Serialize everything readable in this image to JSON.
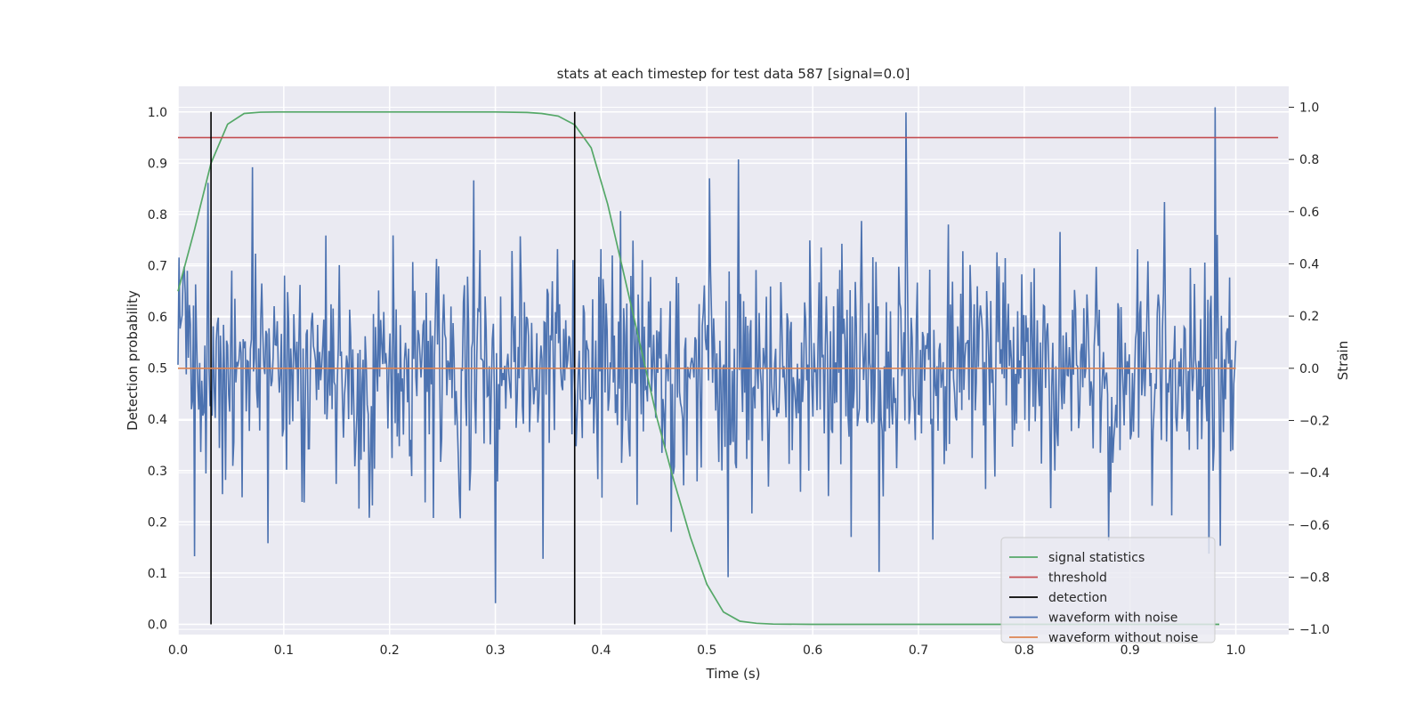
{
  "chart_data": {
    "type": "line",
    "title": "stats at each timestep for test data 587 [signal=0.0]",
    "xlabel": "Time (s)",
    "ylabel": "Detection probability",
    "y2label": "Strain",
    "xlim": [
      0.0,
      1.05
    ],
    "ylim": [
      -0.02,
      1.05
    ],
    "y2lim": [
      -1.02,
      1.08
    ],
    "xticks": [
      "0.0",
      "0.1",
      "0.2",
      "0.3",
      "0.4",
      "0.5",
      "0.6",
      "0.7",
      "0.8",
      "0.9",
      "1.0"
    ],
    "yticks": [
      "0.0",
      "0.1",
      "0.2",
      "0.3",
      "0.4",
      "0.5",
      "0.6",
      "0.7",
      "0.8",
      "0.9",
      "1.0"
    ],
    "y2ticks": [
      "−1.0",
      "−0.8",
      "−0.6",
      "−0.4",
      "−0.2",
      "0.0",
      "0.2",
      "0.4",
      "0.6",
      "0.8",
      "1.0"
    ],
    "grid": true,
    "legend_position": "lower-right",
    "series": [
      {
        "name": "signal statistics",
        "axis": "left",
        "color": "#55a868",
        "x": [
          0.0,
          0.0156,
          0.0312,
          0.0469,
          0.0625,
          0.0781,
          0.0938,
          0.1094,
          0.125,
          0.2,
          0.3,
          0.33,
          0.3438,
          0.3594,
          0.375,
          0.3906,
          0.4062,
          0.4219,
          0.4375,
          0.4531,
          0.4688,
          0.4844,
          0.5,
          0.5156,
          0.5312,
          0.5469,
          0.5625,
          0.6,
          0.7,
          0.8,
          0.9,
          0.9844
        ],
        "y": [
          0.65,
          0.77,
          0.9,
          0.976,
          0.997,
          0.9995,
          1.0,
          1.0,
          1.0,
          1.0,
          1.0,
          0.999,
          0.997,
          0.992,
          0.975,
          0.93,
          0.82,
          0.68,
          0.54,
          0.4,
          0.28,
          0.17,
          0.078,
          0.024,
          0.006,
          0.002,
          0.0005,
          0.0,
          0.0,
          0.0,
          0.0,
          0.0
        ]
      },
      {
        "name": "threshold",
        "axis": "left",
        "color": "#c44e52",
        "x": [
          0.0,
          1.04
        ],
        "y": [
          0.95,
          0.95
        ]
      },
      {
        "name": "detection",
        "axis": "left",
        "color": "#000000",
        "lines_at_x": [
          0.0312,
          0.375
        ],
        "y_range": [
          0.0,
          1.0
        ]
      },
      {
        "name": "waveform with noise",
        "axis": "right",
        "color": "#4c72b0",
        "x_start": 0.0,
        "x_end": 1.0,
        "points": 1024,
        "rms": 0.22,
        "y_min": -0.92,
        "y_max": 1.0,
        "notable_points": [
          {
            "x": 0.0156,
            "y": -0.72
          },
          {
            "x": 0.0285,
            "y": 0.71
          },
          {
            "x": 0.07,
            "y": 0.77
          },
          {
            "x": 0.085,
            "y": -0.67
          },
          {
            "x": 0.28,
            "y": 0.72
          },
          {
            "x": 0.3,
            "y": -0.9
          },
          {
            "x": 0.345,
            "y": -0.73
          },
          {
            "x": 0.52,
            "y": -0.8
          },
          {
            "x": 0.53,
            "y": 0.8
          },
          {
            "x": 0.663,
            "y": -0.78
          },
          {
            "x": 0.688,
            "y": 0.98
          },
          {
            "x": 0.88,
            "y": -0.66
          },
          {
            "x": 0.98,
            "y": 1.0
          },
          {
            "x": 0.985,
            "y": -0.68
          }
        ]
      },
      {
        "name": "waveform without noise",
        "axis": "right",
        "color": "#dd8452",
        "x": [
          0.0,
          1.0
        ],
        "y": [
          0.0,
          0.0
        ]
      }
    ]
  }
}
